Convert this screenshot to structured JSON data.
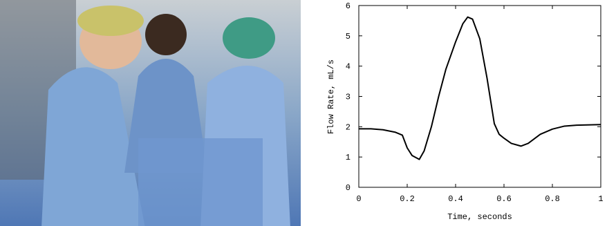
{
  "chart_data": {
    "type": "line",
    "xlabel": "Time, seconds",
    "ylabel": "Flow Rate, mL/s",
    "x": [
      0,
      0.05,
      0.1,
      0.15,
      0.18,
      0.2,
      0.22,
      0.25,
      0.27,
      0.3,
      0.33,
      0.36,
      0.4,
      0.43,
      0.45,
      0.47,
      0.5,
      0.53,
      0.56,
      0.58,
      0.6,
      0.63,
      0.67,
      0.7,
      0.75,
      0.8,
      0.85,
      0.9,
      1.0
    ],
    "series": [
      {
        "color": "#000000",
        "values": [
          1.93,
          1.93,
          1.9,
          1.82,
          1.72,
          1.3,
          1.05,
          0.92,
          1.2,
          2.0,
          3.0,
          3.9,
          4.8,
          5.4,
          5.62,
          5.55,
          4.9,
          3.6,
          2.1,
          1.75,
          1.62,
          1.45,
          1.36,
          1.45,
          1.75,
          1.92,
          2.02,
          2.05,
          2.07
        ]
      }
    ],
    "xlim": [
      0,
      1
    ],
    "ylim": [
      0,
      6
    ],
    "xticks": [
      0,
      0.2,
      0.4,
      0.6,
      0.8,
      1
    ],
    "yticks": [
      0,
      1,
      2,
      3,
      4,
      5,
      6
    ]
  }
}
